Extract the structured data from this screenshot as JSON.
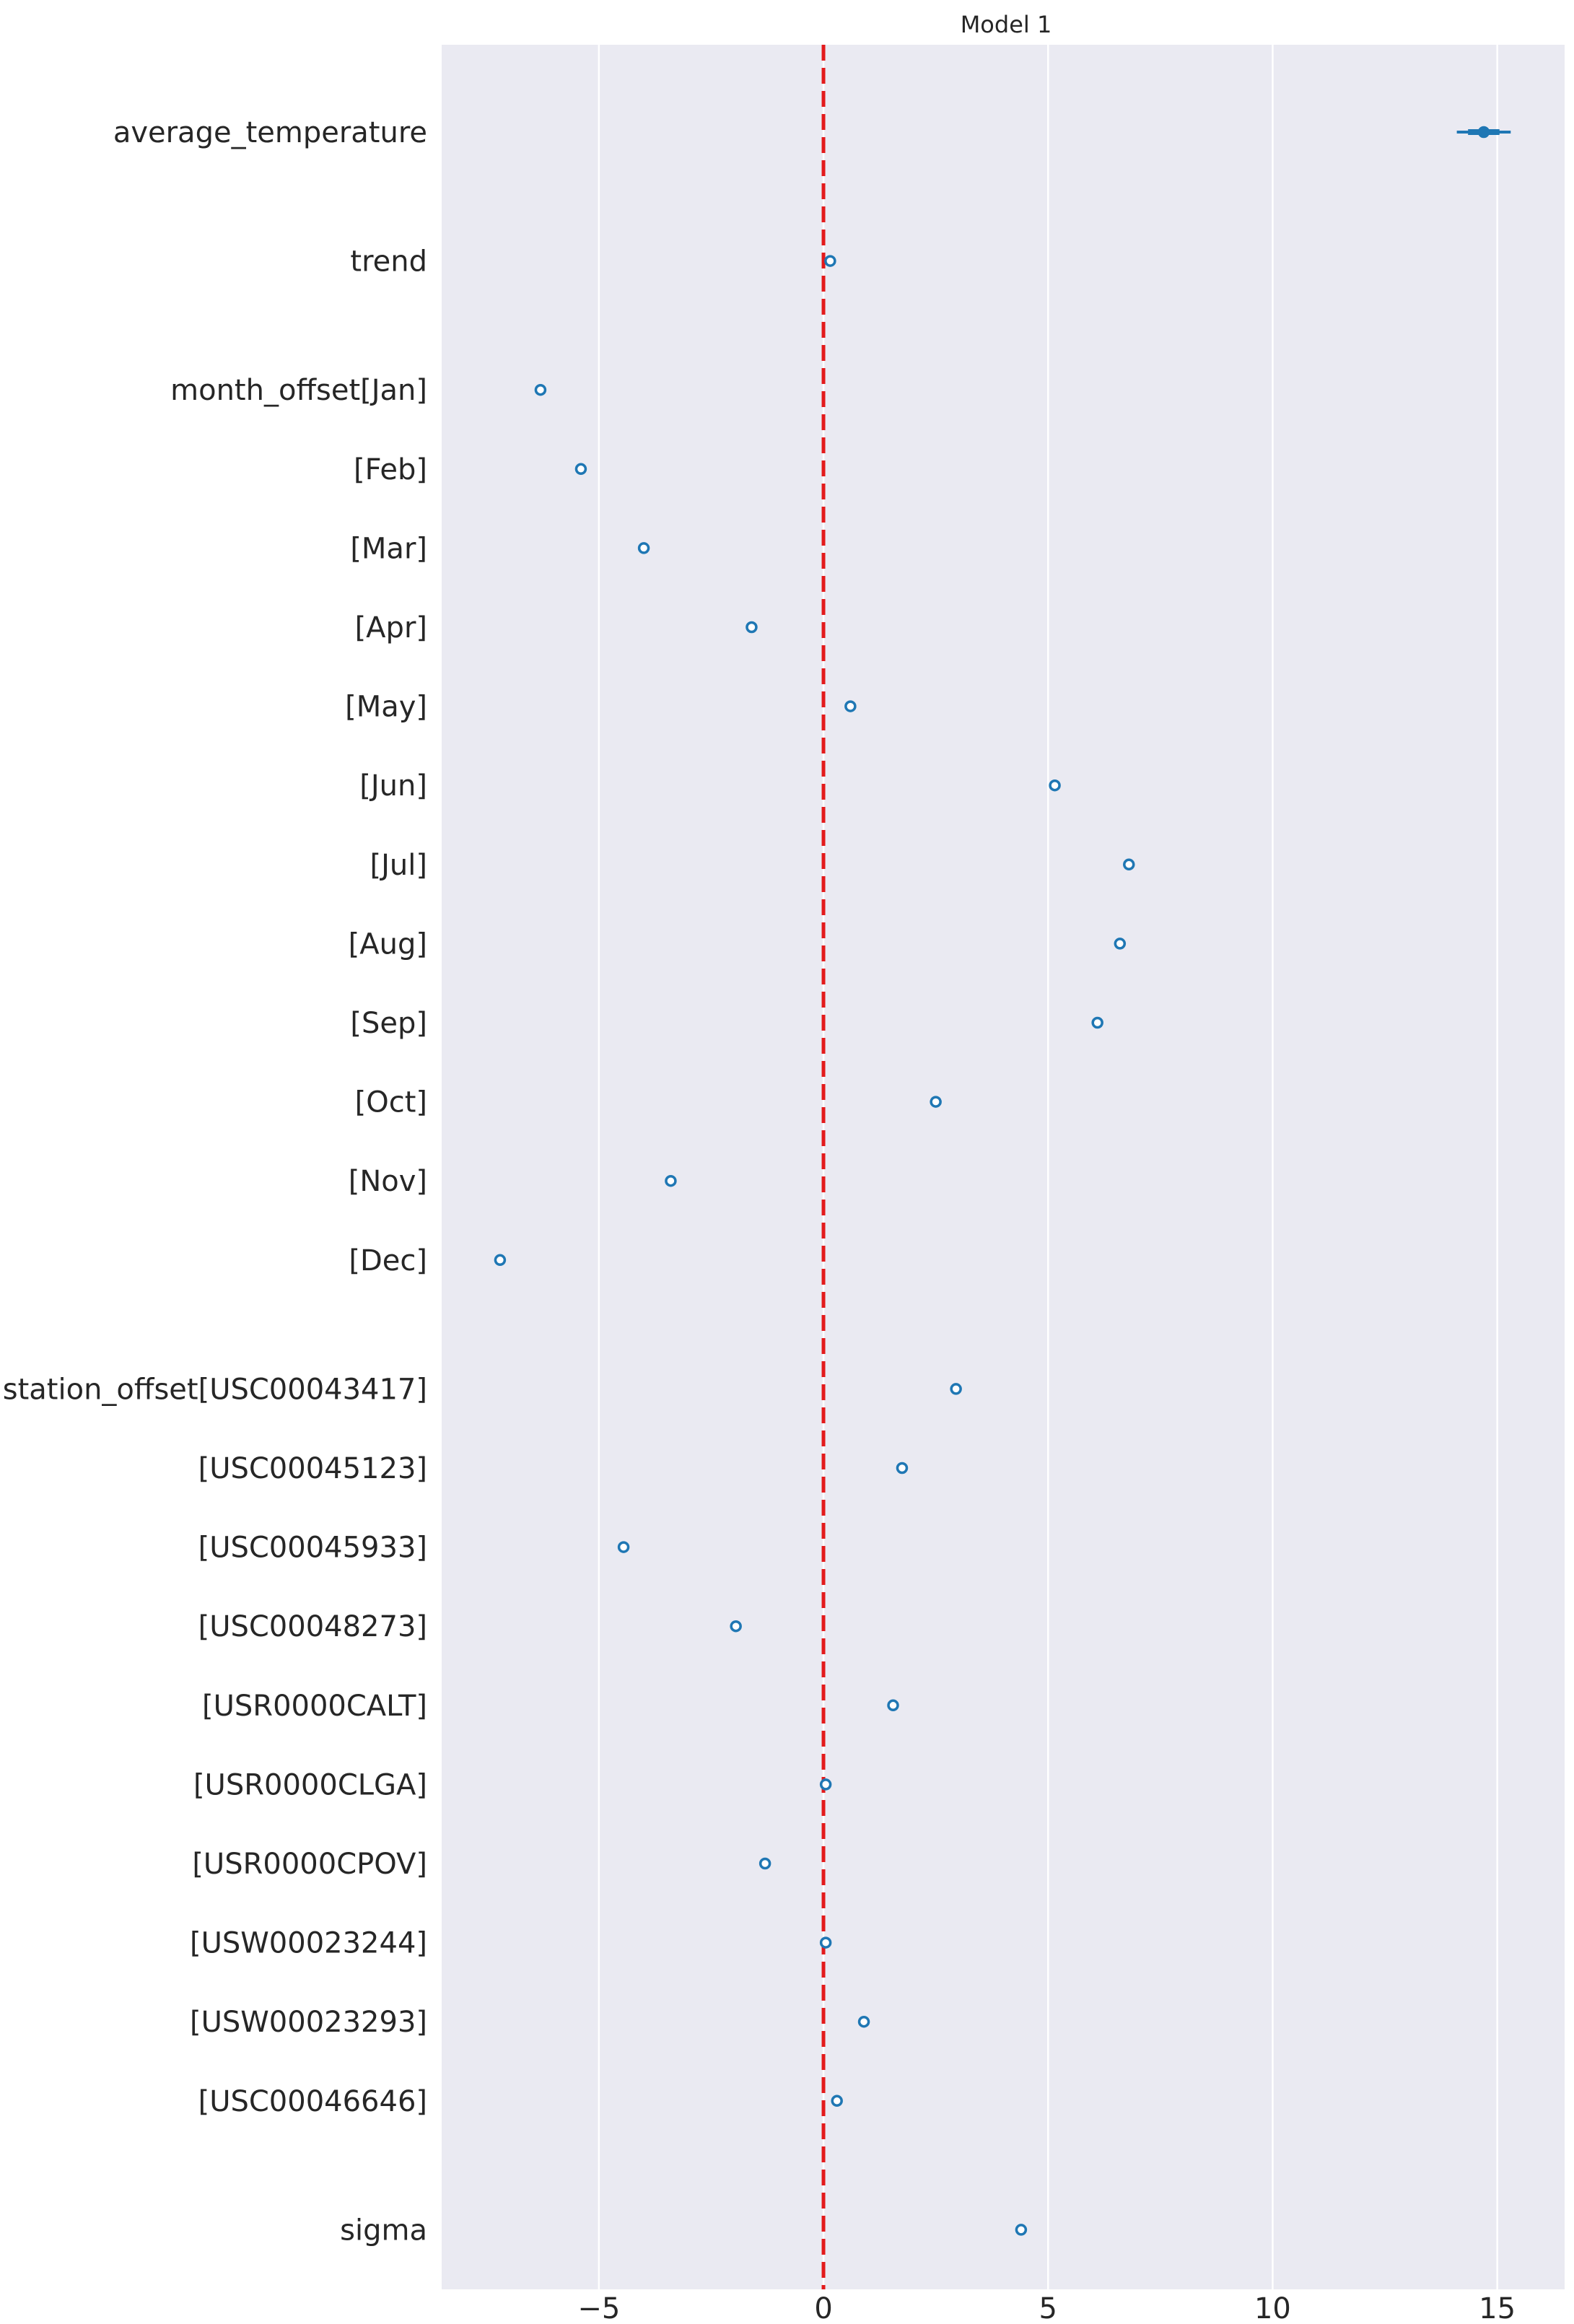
{
  "chart_data": {
    "type": "forest",
    "title": "Model 1",
    "xlabel": "",
    "ylabel": "",
    "xlim": [
      -8.5,
      16.5
    ],
    "xticks": [
      -5,
      0,
      5,
      10,
      15
    ],
    "xtick_labels": [
      "−5",
      "0",
      "5",
      "10",
      "15"
    ],
    "reference_line": {
      "x": 0,
      "color": "#e31a1c",
      "style": "dashed"
    },
    "grid": "vertical",
    "colors": {
      "background": "#eaeaf2",
      "grid": "#ffffff",
      "marker": "#1f77b4",
      "reference": "#e31a1c"
    },
    "groups": [
      {
        "items": [
          {
            "label": "average_temperature",
            "value": 14.7,
            "low": 14.1,
            "high": 15.3
          }
        ]
      },
      {
        "items": [
          {
            "label": "trend",
            "value": 0.15
          }
        ]
      },
      {
        "items": [
          {
            "label": "month_offset[Jan]",
            "value": -6.3
          },
          {
            "label": "[Feb]",
            "value": -5.4
          },
          {
            "label": "[Mar]",
            "value": -4.0
          },
          {
            "label": "[Apr]",
            "value": -1.6
          },
          {
            "label": "[May]",
            "value": 0.6
          },
          {
            "label": "[Jun]",
            "value": 5.15
          },
          {
            "label": "[Jul]",
            "value": 6.8
          },
          {
            "label": "[Aug]",
            "value": 6.6
          },
          {
            "label": "[Sep]",
            "value": 6.1
          },
          {
            "label": "[Oct]",
            "value": 2.5
          },
          {
            "label": "[Nov]",
            "value": -3.4
          },
          {
            "label": "[Dec]",
            "value": -7.2
          }
        ]
      },
      {
        "items": [
          {
            "label": "station_offset[USC00043417]",
            "value": 2.95
          },
          {
            "label": "[USC00045123]",
            "value": 1.75
          },
          {
            "label": "[USC00045933]",
            "value": -4.45
          },
          {
            "label": "[USC00048273]",
            "value": -1.95
          },
          {
            "label": "[USR0000CALT]",
            "value": 1.55
          },
          {
            "label": "[USR0000CLGA]",
            "value": 0.05
          },
          {
            "label": "[USR0000CPOV]",
            "value": -1.3
          },
          {
            "label": "[USW00023244]",
            "value": 0.05
          },
          {
            "label": "[USW00023293]",
            "value": 0.9
          },
          {
            "label": "[USC00046646]",
            "value": 0.3
          }
        ]
      },
      {
        "items": [
          {
            "label": "sigma",
            "value": 4.4
          }
        ]
      }
    ]
  }
}
